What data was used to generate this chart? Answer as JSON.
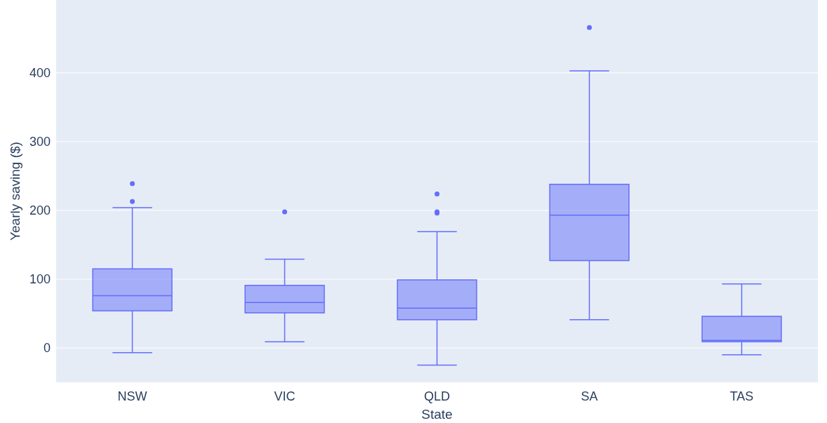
{
  "chart_data": {
    "type": "box",
    "xlabel": "State",
    "ylabel": "Yearly saving ($)",
    "categories": [
      "NSW",
      "VIC",
      "QLD",
      "SA",
      "TAS"
    ],
    "ylim": [
      -50,
      506
    ],
    "yticks": [
      0,
      100,
      200,
      300,
      400
    ],
    "grid": "y",
    "series": [
      {
        "color": "#636efa",
        "boxes": [
          {
            "low": -7,
            "q1": 54,
            "median": 76,
            "q3": 115,
            "high": 204,
            "outliers": [
              213,
              239
            ]
          },
          {
            "low": 9,
            "q1": 51,
            "median": 66,
            "q3": 91,
            "high": 129,
            "outliers": [
              198
            ]
          },
          {
            "low": -25,
            "q1": 41,
            "median": 58,
            "q3": 99,
            "high": 169,
            "outliers": [
              196,
              198,
              224
            ]
          },
          {
            "low": 41,
            "q1": 127,
            "median": 193,
            "q3": 238,
            "high": 403,
            "outliers": [
              466
            ]
          },
          {
            "low": -10,
            "q1": 9,
            "median": 11,
            "q3": 46,
            "high": 93
          }
        ]
      }
    ]
  }
}
